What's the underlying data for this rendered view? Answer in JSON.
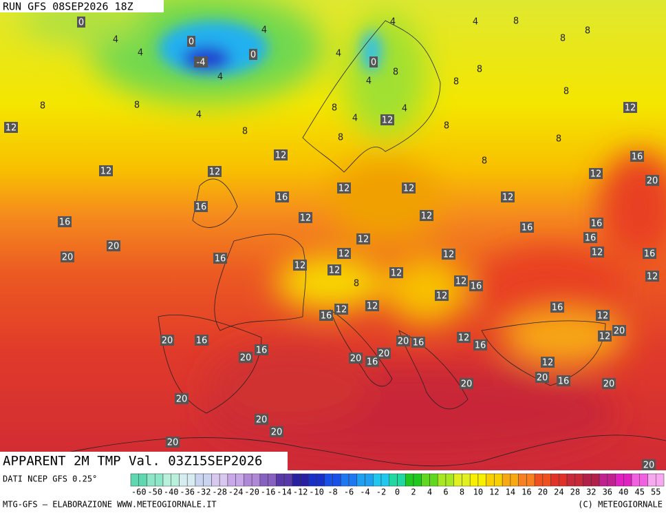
{
  "header": {
    "run": "RUN GFS 08SEP2026 18Z",
    "title": "APPARENT 2M TMP Val. 03Z15SEP2026"
  },
  "footer": {
    "source": "DATI NCEP GFS 0.25°",
    "credit": "MTG-GFS — ELABORAZIONE WWW.METEOGIORNALE.IT",
    "copyright": "(C) METEOGIORNALE"
  },
  "scale": [
    {
      "value": -60,
      "color": "#5fd7b0"
    },
    {
      "value": -50,
      "color": "#8ee6c8"
    },
    {
      "value": -40,
      "color": "#b8f0dc"
    },
    {
      "value": -36,
      "color": "#d6ecf0"
    },
    {
      "value": -32,
      "color": "#c8d4f0"
    },
    {
      "value": -28,
      "color": "#d8c8f0"
    },
    {
      "value": -24,
      "color": "#c8a8e8"
    },
    {
      "value": -20,
      "color": "#b088d8"
    },
    {
      "value": -16,
      "color": "#8860c0"
    },
    {
      "value": -14,
      "color": "#5838a8"
    },
    {
      "value": -12,
      "color": "#2820a0"
    },
    {
      "value": -10,
      "color": "#1830c8"
    },
    {
      "value": -8,
      "color": "#1850e8"
    },
    {
      "value": -6,
      "color": "#2078f0"
    },
    {
      "value": -4,
      "color": "#20a0f0"
    },
    {
      "value": -2,
      "color": "#20c8f0"
    },
    {
      "value": 0,
      "color": "#20d8a0"
    },
    {
      "value": 2,
      "color": "#20c820"
    },
    {
      "value": 4,
      "color": "#60d820"
    },
    {
      "value": 6,
      "color": "#a8e820"
    },
    {
      "value": 8,
      "color": "#e0f020"
    },
    {
      "value": 10,
      "color": "#f8f000"
    },
    {
      "value": 12,
      "color": "#f8d000"
    },
    {
      "value": 14,
      "color": "#f8a810"
    },
    {
      "value": 16,
      "color": "#f88020"
    },
    {
      "value": 20,
      "color": "#f05020"
    },
    {
      "value": 24,
      "color": "#e03028"
    },
    {
      "value": 28,
      "color": "#c82838"
    },
    {
      "value": 32,
      "color": "#b02048"
    },
    {
      "value": 36,
      "color": "#c02090"
    },
    {
      "value": 40,
      "color": "#e020c0"
    },
    {
      "value": 45,
      "color": "#f060e0"
    },
    {
      "value": 55,
      "color": "#f8a8f0"
    }
  ],
  "map_labels": [
    0,
    4,
    4,
    0,
    -4,
    4,
    0,
    4,
    8,
    8,
    4,
    12,
    8,
    4,
    4,
    8,
    8,
    8,
    0,
    4,
    8,
    4,
    8,
    8,
    8,
    8,
    4,
    4,
    12,
    12,
    8,
    8,
    8,
    12,
    12,
    12,
    8,
    16,
    12,
    20,
    12,
    12,
    16,
    16,
    12,
    12,
    12,
    16,
    16,
    16,
    20,
    12,
    16,
    12,
    20,
    16,
    12,
    12,
    16,
    12,
    12,
    12,
    8,
    12,
    16,
    12,
    12,
    12,
    16,
    16,
    12,
    12,
    20,
    12,
    20,
    16,
    20,
    16,
    12,
    16,
    16,
    20,
    20,
    16,
    20,
    12,
    20,
    16,
    20,
    20,
    20,
    20,
    20,
    20,
    20
  ]
}
